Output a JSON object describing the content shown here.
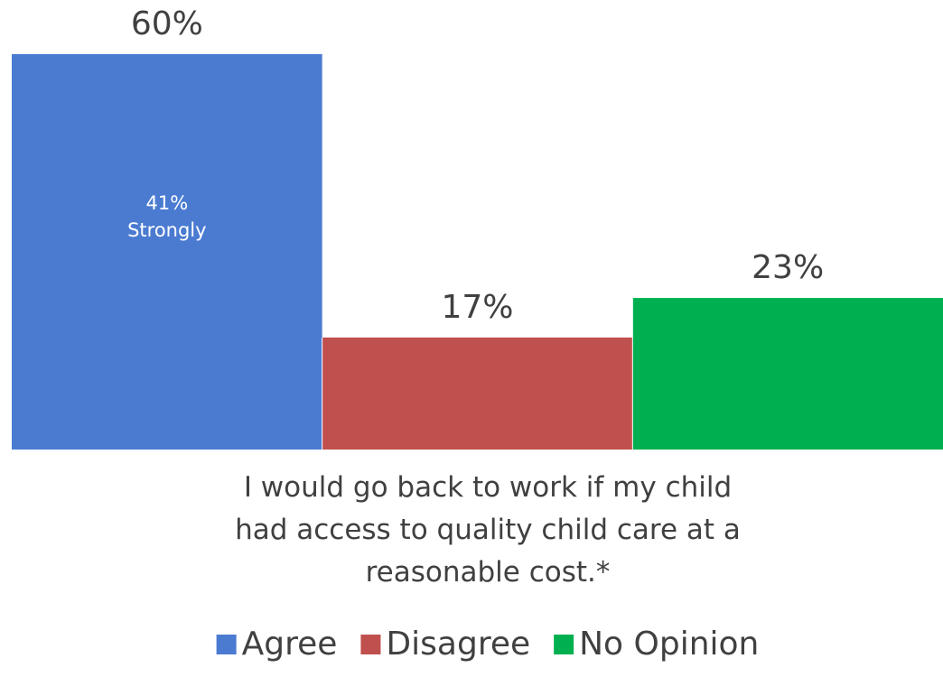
{
  "chart_data": {
    "type": "bar",
    "categories": [
      "I would go back to work if my child had access to quality child care at a reasonable cost.*"
    ],
    "category_label_lines": [
      "I would go back to work if my child",
      "had access to quality child care at a",
      "reasonable cost.*"
    ],
    "series": [
      {
        "name": "Agree",
        "values": [
          60
        ],
        "label": "60%",
        "color": "#4a7bd1",
        "inner_label_lines": [
          "41%",
          "Strongly"
        ]
      },
      {
        "name": "Disagree",
        "values": [
          17
        ],
        "label": "17%",
        "color": "#c0504d"
      },
      {
        "name": "No Opinion",
        "values": [
          23
        ],
        "label": "23%",
        "color": "#00b050"
      }
    ],
    "ylim": [
      0,
      60
    ],
    "grid": false,
    "legend_position": "bottom"
  }
}
